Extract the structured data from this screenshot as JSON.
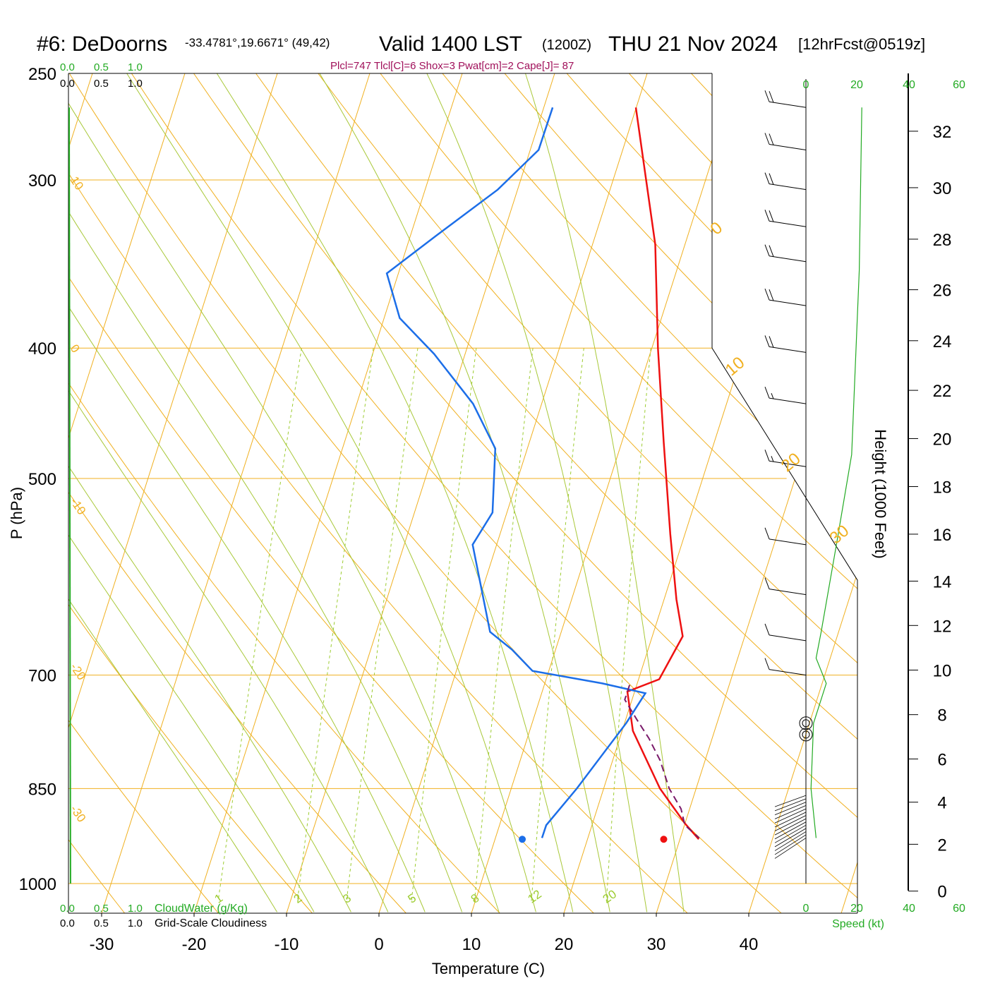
{
  "header": {
    "station": "#6: DeDoorns",
    "coords": "-33.4781°,19.6671° (49,42)",
    "valid": "Valid 1400 LST",
    "zulu": "(1200Z)",
    "date": "THU 21 Nov 2024",
    "forecast": "[12hrFcst@0519z]",
    "indices": "Plcl=747 Tlcl[C]=6 Shox=3 Pwat[cm]=2 Cape[J]= 87"
  },
  "colors": {
    "temperature": "#ee1111",
    "dewpoint": "#1c6ee8",
    "parcel": "#7a1a6a",
    "isotherm_isobar": "#f0b020",
    "mixing_ratio": "#9ccc30",
    "moist_adiabat": "#a8c838",
    "cloud_green": "#22aa22",
    "indices_text": "#a0105a"
  },
  "axes": {
    "x_title": "Temperature (C)",
    "y_title": "P (hPa)",
    "height_title": "Height (1000 Feet)",
    "cloudwater_label": "CloudWater (g/Kg)",
    "cloudiness_label": "Grid-Scale Cloudiness",
    "speed_label": "Speed (kt)",
    "cloud_ticks": [
      "0.0",
      "0.5",
      "1.0"
    ],
    "speed_ticks": [
      "0",
      "20",
      "40",
      "60"
    ]
  },
  "chart_data": {
    "type": "line",
    "title": "#6: DeDoorns Valid 1400 LST (1200Z) THU 21 Nov 2024",
    "xlabel": "Temperature (C)",
    "ylabel": "P (hPa)",
    "x_ticks": [
      -30,
      -20,
      -10,
      0,
      10,
      20,
      30,
      40
    ],
    "x_range": [
      -34,
      36
    ],
    "p_range": [
      250,
      1000
    ],
    "p_ticks": [
      250,
      300,
      400,
      500,
      700,
      850,
      1000
    ],
    "isobars": [
      300,
      400,
      500,
      700,
      850,
      1000
    ],
    "height_ticks": [
      0,
      2,
      4,
      6,
      8,
      10,
      12,
      14,
      16,
      18,
      20,
      22,
      24,
      26,
      28,
      30,
      32
    ],
    "height_pressures": [
      1013,
      935,
      870,
      808,
      749,
      694,
      643,
      596,
      550,
      507,
      467,
      430,
      395,
      362,
      332,
      304,
      276
    ],
    "isotherm_labels": [
      {
        "text": "10",
        "p": 300
      },
      {
        "text": "0",
        "p": 400
      },
      {
        "text": "-10",
        "p": 520
      },
      {
        "text": "-20",
        "p": 690
      },
      {
        "text": "-30",
        "p": 880
      }
    ],
    "isotherm_right_labels": [
      {
        "text": "0",
        "p": 330
      },
      {
        "text": "10",
        "p": 420
      },
      {
        "text": "20",
        "p": 495
      },
      {
        "text": "30",
        "p": 560
      }
    ],
    "mixing_ratio_labels": [
      "1",
      "2",
      "3",
      "5",
      "8",
      "12",
      "20"
    ],
    "mixing_ratio_values": [
      1,
      2,
      3,
      5,
      8,
      12,
      20
    ],
    "series": [
      {
        "name": "Temperature",
        "points": [
          [
            0,
            265
          ],
          [
            7,
            335
          ],
          [
            11,
            400
          ],
          [
            15,
            470
          ],
          [
            19,
            550
          ],
          [
            22,
            615
          ],
          [
            24,
            655
          ],
          [
            23,
            705
          ],
          [
            20,
            720
          ],
          [
            22,
            770
          ],
          [
            27,
            850
          ],
          [
            31,
            903
          ],
          [
            33,
            927
          ]
        ]
      },
      {
        "name": "Dewpoint",
        "points": [
          [
            -9,
            265
          ],
          [
            -9,
            285
          ],
          [
            -12,
            305
          ],
          [
            -17,
            330
          ],
          [
            -21,
            352
          ],
          [
            -18,
            380
          ],
          [
            -13,
            404
          ],
          [
            -7,
            440
          ],
          [
            -3,
            475
          ],
          [
            -1,
            530
          ],
          [
            -2,
            560
          ],
          [
            3,
            650
          ],
          [
            6,
            670
          ],
          [
            9,
            695
          ],
          [
            17,
            710
          ],
          [
            22,
            722
          ],
          [
            21,
            760
          ],
          [
            18,
            850
          ],
          [
            16,
            905
          ],
          [
            16,
            925
          ]
        ]
      },
      {
        "name": "Parcel",
        "points": [
          [
            20,
            712
          ],
          [
            20,
            730
          ],
          [
            22,
            755
          ],
          [
            24,
            780
          ],
          [
            26,
            810
          ],
          [
            28,
            850
          ],
          [
            30,
            880
          ],
          [
            31,
            905
          ],
          [
            33,
            925
          ]
        ]
      }
    ],
    "surface_markers": [
      {
        "name": "Dewpoint",
        "t": 15.5,
        "p": 927
      },
      {
        "name": "Temperature",
        "t": 30.8,
        "p": 927
      }
    ],
    "wind_barbs": [
      {
        "p": 265,
        "speed": 20
      },
      {
        "p": 285,
        "speed": 20
      },
      {
        "p": 305,
        "speed": 20
      },
      {
        "p": 325,
        "speed": 20
      },
      {
        "p": 345,
        "speed": 20
      },
      {
        "p": 372,
        "speed": 20
      },
      {
        "p": 403,
        "speed": 20
      },
      {
        "p": 440,
        "speed": 15
      },
      {
        "p": 490,
        "speed": 15
      },
      {
        "p": 560,
        "speed": 10
      },
      {
        "p": 610,
        "speed": 10
      },
      {
        "p": 660,
        "speed": 10
      },
      {
        "p": 700,
        "speed": 10
      }
    ],
    "cloud_water_profile": [
      [
        0,
        250
      ],
      [
        0.02,
        1000
      ]
    ],
    "speed_profile": [
      [
        22,
        265
      ],
      [
        21,
        350
      ],
      [
        18,
        480
      ],
      [
        12,
        560
      ],
      [
        6,
        650
      ],
      [
        4,
        680
      ],
      [
        8,
        710
      ],
      [
        3,
        760
      ],
      [
        2,
        850
      ],
      [
        4,
        925
      ]
    ]
  }
}
